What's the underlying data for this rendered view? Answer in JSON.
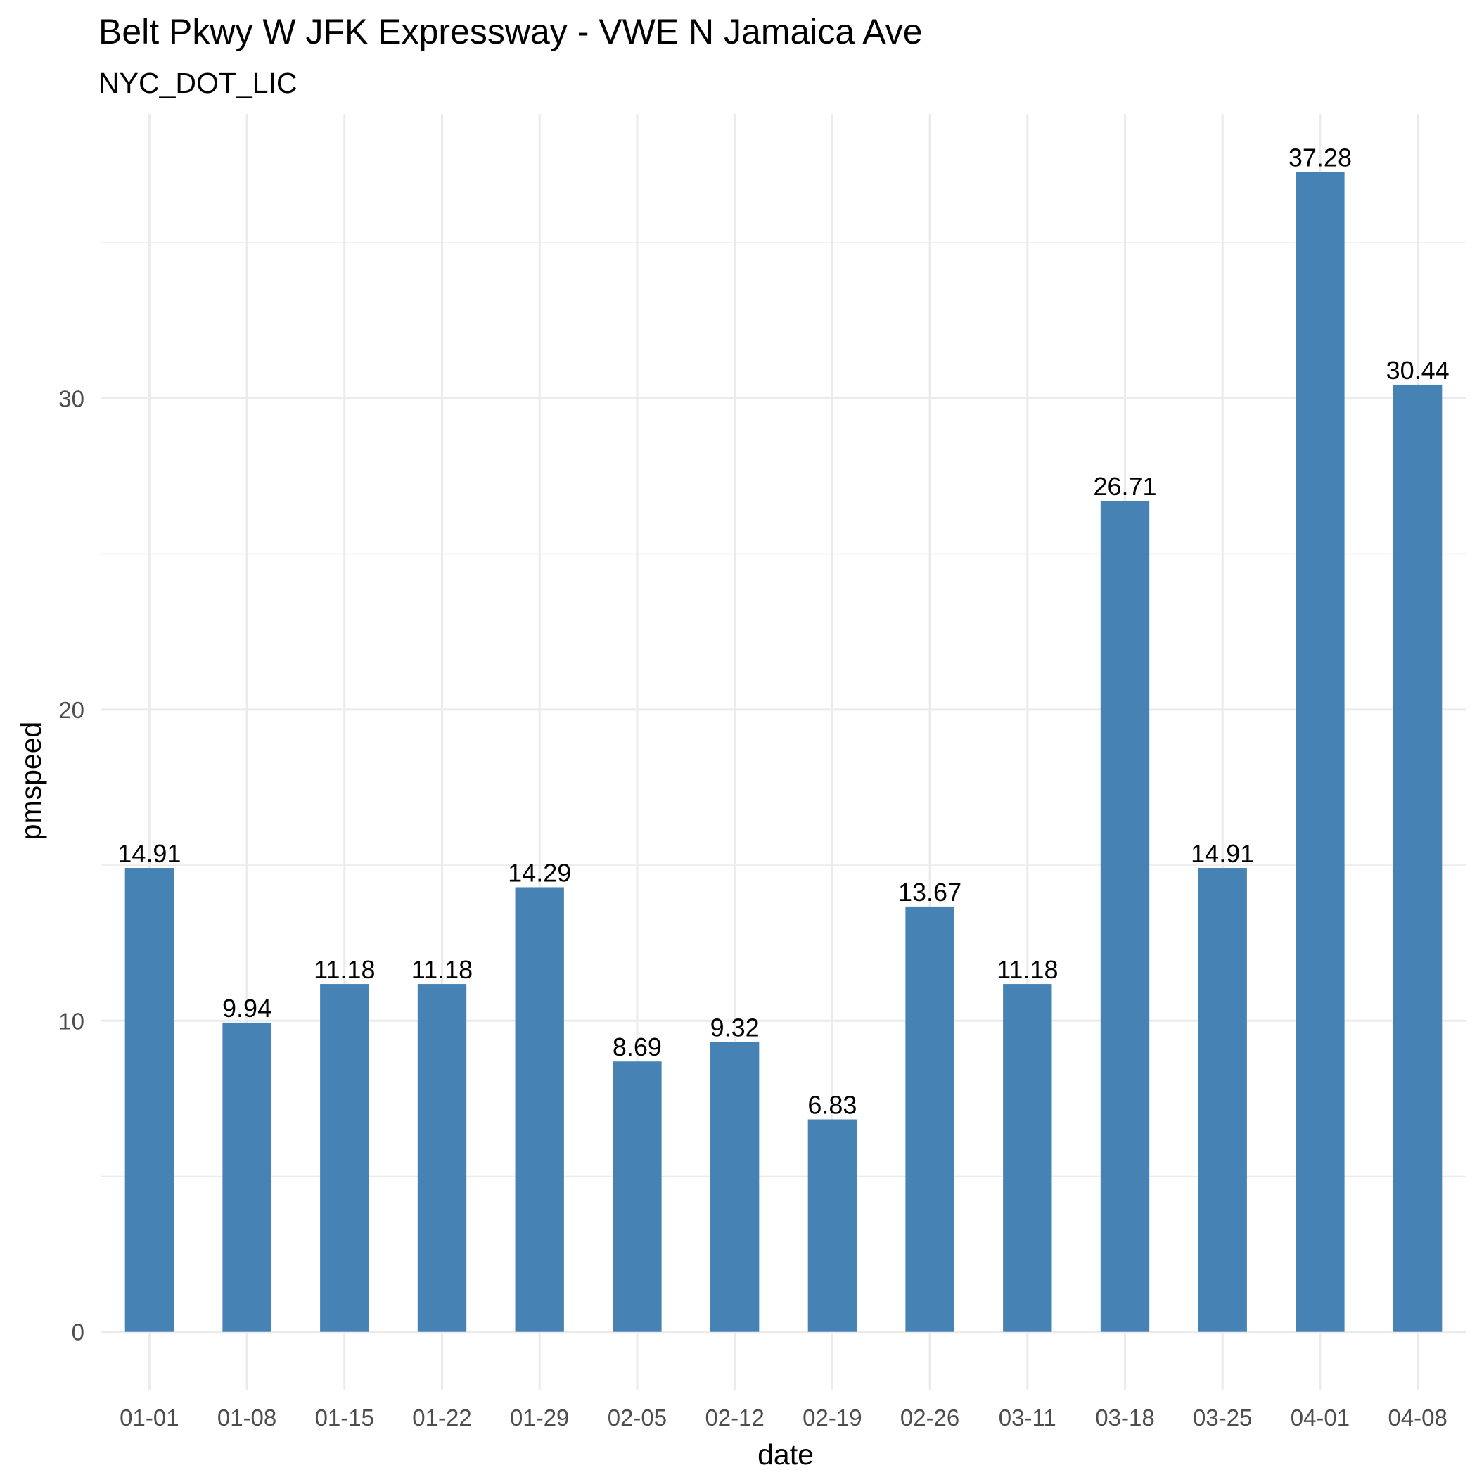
{
  "chart_data": {
    "type": "bar",
    "title": "Belt Pkwy W JFK Expressway - VWE N Jamaica Ave",
    "subtitle": "NYC_DOT_LIC",
    "xlabel": "date",
    "ylabel": "pmspeed",
    "categories": [
      "01-01",
      "01-08",
      "01-15",
      "01-22",
      "01-29",
      "02-05",
      "02-12",
      "02-19",
      "02-26",
      "03-11",
      "03-18",
      "03-25",
      "04-01",
      "04-08"
    ],
    "values": [
      14.91,
      9.94,
      11.18,
      11.18,
      14.29,
      8.69,
      9.32,
      6.83,
      13.67,
      11.18,
      26.71,
      14.91,
      37.28,
      30.44
    ],
    "data_labels": [
      "14.91",
      "9.94",
      "11.18",
      "11.18",
      "14.29",
      "8.69",
      "9.32",
      "6.83",
      "13.67",
      "11.18",
      "26.71",
      "14.91",
      "37.28",
      "30.44"
    ],
    "y_ticks": [
      "0",
      "10",
      "20",
      "30"
    ],
    "ylim": [
      -1.86,
      39.14
    ],
    "grid": true,
    "legend": "none",
    "colors": {
      "bar": "#4682b4",
      "grid": "#ebebeb",
      "tick_text": "#4d4d4d",
      "text": "#000000",
      "background": "#ffffff"
    }
  }
}
